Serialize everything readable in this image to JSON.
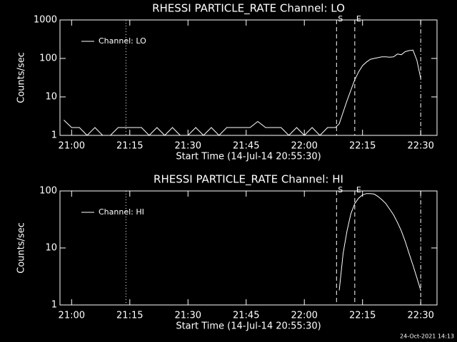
{
  "chart_data": [
    {
      "type": "line",
      "title": "RHESSI PARTICLE_RATE Channel: LO",
      "x_label": "Start Time (14-Jul-14 20:55:30)",
      "y_label": "Counts/sec",
      "log_y": true,
      "legend": "upper left",
      "xlim": [
        1257,
        1354.2
      ],
      "ylim": [
        1,
        1000
      ],
      "xticks": [
        {
          "value": 1260,
          "label": "21:00"
        },
        {
          "value": 1275,
          "label": "21:15"
        },
        {
          "value": 1290,
          "label": "21:30"
        },
        {
          "value": 1305,
          "label": "21:45"
        },
        {
          "value": 1320,
          "label": "22:00"
        },
        {
          "value": 1335,
          "label": "22:15"
        },
        {
          "value": 1350,
          "label": "22:30"
        }
      ],
      "yticks": [
        1,
        10,
        100,
        1000
      ],
      "markers": [
        {
          "x": 1274,
          "style": "dotted"
        },
        {
          "x": 1328.3,
          "style": "dashed",
          "label": "S"
        },
        {
          "x": 1333,
          "style": "dashed",
          "label": "E"
        },
        {
          "x": 1350,
          "style": "dashdot"
        }
      ],
      "series": [
        {
          "name": "Channel: LO",
          "color": "#ffffff",
          "x": [
            1258,
            1260,
            1262,
            1264,
            1266,
            1268,
            1270,
            1272,
            1274,
            1276,
            1278,
            1280,
            1282,
            1284,
            1286,
            1288,
            1290,
            1292,
            1294,
            1296,
            1298,
            1300,
            1302,
            1304,
            1306,
            1308,
            1310,
            1312,
            1314,
            1316,
            1318,
            1320,
            1322,
            1324,
            1326,
            1328,
            1329,
            1330,
            1331,
            1332,
            1333,
            1334,
            1335,
            1336,
            1337,
            1338,
            1339,
            1340,
            1341,
            1342,
            1343,
            1344,
            1345,
            1346,
            1347,
            1348,
            1349,
            1350
          ],
          "values": [
            2.5,
            1.6,
            1.6,
            1,
            1.6,
            1,
            1,
            1.6,
            1.6,
            1.6,
            1.6,
            1,
            1.6,
            1,
            1.6,
            1,
            1,
            1.6,
            1,
            1.6,
            1,
            1.6,
            1.6,
            1.6,
            1.6,
            2.3,
            1.6,
            1.6,
            1.6,
            1,
            1.6,
            1,
            1.6,
            1,
            1.6,
            1.6,
            2,
            4,
            8,
            15,
            28,
            45,
            65,
            80,
            95,
            100,
            105,
            110,
            110,
            108,
            110,
            130,
            125,
            150,
            160,
            165,
            90,
            30
          ]
        }
      ]
    },
    {
      "type": "line",
      "title": "RHESSI PARTICLE_RATE Channel: HI",
      "x_label": "Start Time (14-Jul-14 20:55:30)",
      "y_label": "Counts/sec",
      "log_y": true,
      "legend": "upper left",
      "xlim": [
        1257,
        1354.2
      ],
      "ylim": [
        1,
        100
      ],
      "xticks": [
        {
          "value": 1260,
          "label": "21:00"
        },
        {
          "value": 1275,
          "label": "21:15"
        },
        {
          "value": 1290,
          "label": "21:30"
        },
        {
          "value": 1305,
          "label": "21:45"
        },
        {
          "value": 1320,
          "label": "22:00"
        },
        {
          "value": 1335,
          "label": "22:15"
        },
        {
          "value": 1350,
          "label": "22:30"
        }
      ],
      "yticks": [
        1,
        10,
        100
      ],
      "markers": [
        {
          "x": 1274,
          "style": "dotted"
        },
        {
          "x": 1328.3,
          "style": "dashed",
          "label": "S"
        },
        {
          "x": 1333,
          "style": "dashed",
          "label": "E"
        },
        {
          "x": 1350,
          "style": "dashdot"
        }
      ],
      "series": [
        {
          "name": "Channel: HI",
          "color": "#ffffff",
          "x": [
            1329,
            1330,
            1331,
            1332,
            1333,
            1334,
            1335,
            1336,
            1337,
            1338,
            1339,
            1340,
            1341,
            1342,
            1343,
            1344,
            1345,
            1346,
            1347,
            1348,
            1349,
            1350
          ],
          "values": [
            1.8,
            8,
            20,
            40,
            60,
            75,
            85,
            90,
            90,
            88,
            80,
            70,
            60,
            48,
            38,
            28,
            20,
            13,
            8,
            5,
            3,
            1.8
          ]
        }
      ]
    }
  ],
  "footer": "24-Oct-2021 14:13"
}
